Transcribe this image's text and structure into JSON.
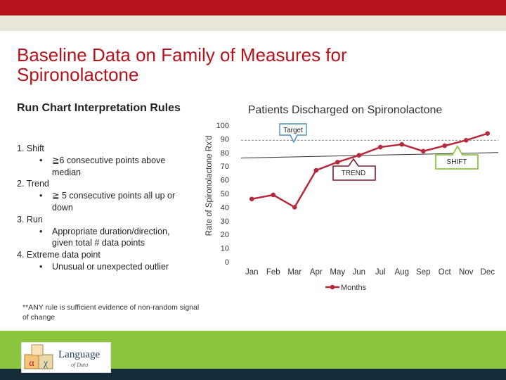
{
  "slide": {
    "title": "Baseline Data on Family of Measures for Spironolactone"
  },
  "rules_panel": {
    "heading": "Run Chart Interpretation Rules",
    "rules": [
      {
        "label": "1. Shift",
        "detail": "≧6 consecutive points above median"
      },
      {
        "label": "2. Trend",
        "detail": "≧ 5 consecutive points all up or down"
      },
      {
        "label": "3. Run",
        "detail": "Appropriate duration/direction, given total # data points"
      },
      {
        "label": "4. Extreme data point",
        "detail": "Unusual or unexpected outlier"
      }
    ],
    "bullet": "•",
    "footnote": "**ANY rule is sufficient evidence of non-random signal of change"
  },
  "logo": {
    "word": "Language",
    "sub": "of Data",
    "block_letters": [
      "α",
      "χ"
    ]
  },
  "chart_data": {
    "type": "line",
    "title": "Patients Discharged on Spironolactone",
    "xlabel": "",
    "ylabel": "Rate of Spironolactone Rx'd",
    "categories": [
      "Jan",
      "Feb",
      "Mar",
      "Apr",
      "May",
      "Jun",
      "Jul",
      "Aug",
      "Sep",
      "Oct",
      "Nov",
      "Dec"
    ],
    "series": [
      {
        "name": "Months",
        "color": "#b5293b",
        "values": [
          46,
          49,
          40,
          67,
          73,
          78,
          84,
          86,
          81,
          85,
          89,
          94
        ]
      }
    ],
    "ylim": [
      0,
      100
    ],
    "yticks": [
      0,
      10,
      20,
      30,
      40,
      50,
      60,
      70,
      80,
      90,
      100
    ],
    "median_line": {
      "start": 76,
      "end": 80,
      "color": "#333333"
    },
    "target_line": {
      "value": 89,
      "color": "#8a8a8a"
    },
    "grid": false,
    "legend": "bottom",
    "annotations": {
      "target": {
        "text": "Target",
        "border": "#4a90b8"
      },
      "trend": {
        "text": "TREND",
        "border": "#7a1d2b"
      },
      "shift": {
        "text": "SHIFT",
        "border": "#8cc63f"
      }
    }
  }
}
